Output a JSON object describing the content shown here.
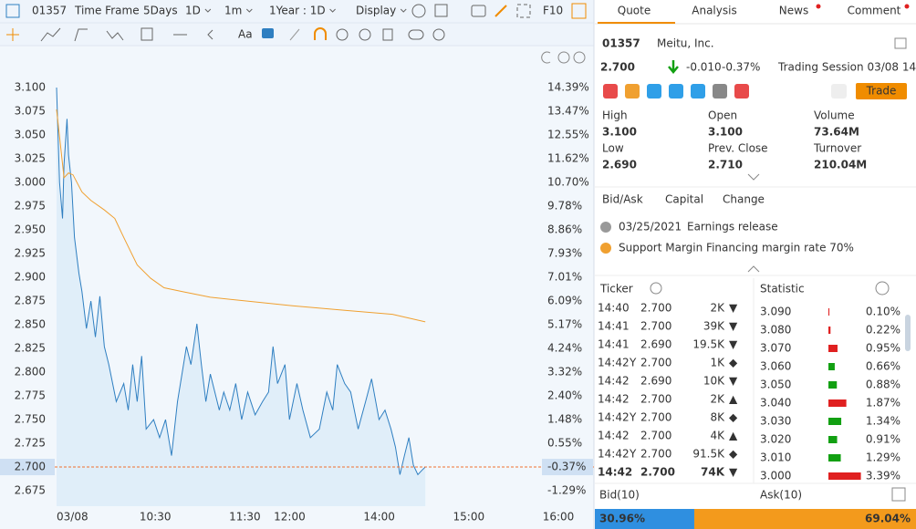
{
  "toolbar": {
    "code": "01357",
    "time_frame": "Time Frame",
    "options": [
      "5Days",
      "1D",
      "1m",
      "1Year : 1D",
      "Display"
    ],
    "f10": "F10",
    "font_tool": "Aa"
  },
  "chart": {
    "type": "line",
    "xlim": [
      0,
      330
    ],
    "xticks": [
      {
        "value": 0,
        "label": "03/08"
      },
      {
        "value": 60,
        "label": "10:30"
      },
      {
        "value": 120,
        "label": "11:30"
      },
      {
        "value": 150,
        "label": "12:00"
      },
      {
        "value": 210,
        "label": "14:00"
      },
      {
        "value": 270,
        "label": "15:00"
      },
      {
        "value": 330,
        "label": "16:00"
      }
    ],
    "ylim": [
      2.6587,
      3.1154
    ],
    "yticks": [
      {
        "value": 3.1,
        "label": "3.100"
      },
      {
        "value": 3.075,
        "label": "3.075"
      },
      {
        "value": 3.05,
        "label": "3.050"
      },
      {
        "value": 3.025,
        "label": "3.025"
      },
      {
        "value": 3.0,
        "label": "3.000"
      },
      {
        "value": 2.975,
        "label": "2.975"
      },
      {
        "value": 2.95,
        "label": "2.950"
      },
      {
        "value": 2.925,
        "label": "2.925"
      },
      {
        "value": 2.9,
        "label": "2.900"
      },
      {
        "value": 2.875,
        "label": "2.875"
      },
      {
        "value": 2.85,
        "label": "2.850"
      },
      {
        "value": 2.825,
        "label": "2.825"
      },
      {
        "value": 2.8,
        "label": "2.800"
      },
      {
        "value": 2.775,
        "label": "2.775"
      },
      {
        "value": 2.75,
        "label": "2.750"
      },
      {
        "value": 2.725,
        "label": "2.725"
      },
      {
        "value": 2.7,
        "label": "2.700"
      },
      {
        "value": 2.675,
        "label": "2.675"
      }
    ],
    "y2lim": [
      -1.893,
      14.959
    ],
    "y2ticks": [
      {
        "value": 14.39,
        "label": "14.39%"
      },
      {
        "value": 13.47,
        "label": "13.47%"
      },
      {
        "value": 12.55,
        "label": "12.55%"
      },
      {
        "value": 11.62,
        "label": "11.62%"
      },
      {
        "value": 10.7,
        "label": "10.70%"
      },
      {
        "value": 9.78,
        "label": "9.78%"
      },
      {
        "value": 8.86,
        "label": "8.86%"
      },
      {
        "value": 7.93,
        "label": "7.93%"
      },
      {
        "value": 7.01,
        "label": "7.01%"
      },
      {
        "value": 6.09,
        "label": "6.09%"
      },
      {
        "value": 5.17,
        "label": "5.17%"
      },
      {
        "value": 4.24,
        "label": "4.24%"
      },
      {
        "value": 3.32,
        "label": "3.32%"
      },
      {
        "value": 2.4,
        "label": "2.40%"
      },
      {
        "value": 1.48,
        "label": "1.48%"
      },
      {
        "value": 0.55,
        "label": "0.55%"
      },
      {
        "value": -0.37,
        "label": "-0.37%"
      },
      {
        "value": -1.29,
        "label": "-1.29%"
      }
    ],
    "up_color": "#e02020",
    "down_color": "#12a012",
    "series": [
      {
        "color": "#2f7fc1",
        "fill": "#d9e9f8",
        "x": [
          0,
          2,
          4,
          5,
          7,
          8,
          10,
          12,
          15,
          17,
          20,
          23,
          26,
          29,
          32,
          35,
          40,
          45,
          48,
          51,
          54,
          57,
          60,
          65,
          69,
          73,
          77,
          81,
          84,
          87,
          90,
          94,
          97,
          100,
          103,
          106,
          109,
          112,
          116,
          120,
          124,
          128,
          133,
          138,
          142,
          145,
          148,
          153,
          156,
          161,
          165,
          170,
          176,
          181,
          185,
          188,
          193,
          197,
          202,
          207,
          211,
          216,
          220,
          224,
          227,
          230,
          233,
          236,
          239,
          242,
          245,
          247
        ],
        "values": [
          3.1,
          3.0,
          2.962,
          3.019,
          3.067,
          3.029,
          3.0,
          2.942,
          2.904,
          2.885,
          2.846,
          2.875,
          2.837,
          2.88,
          2.827,
          2.808,
          2.769,
          2.788,
          2.76,
          2.808,
          2.769,
          2.817,
          2.74,
          2.75,
          2.731,
          2.75,
          2.712,
          2.769,
          2.798,
          2.827,
          2.808,
          2.851,
          2.808,
          2.769,
          2.798,
          2.779,
          2.76,
          2.779,
          2.76,
          2.788,
          2.75,
          2.779,
          2.755,
          2.769,
          2.779,
          2.827,
          2.788,
          2.808,
          2.75,
          2.788,
          2.76,
          2.731,
          2.74,
          2.779,
          2.76,
          2.808,
          2.788,
          2.779,
          2.74,
          2.769,
          2.793,
          2.75,
          2.76,
          2.74,
          2.721,
          2.692,
          2.712,
          2.731,
          2.702,
          2.692,
          2.697,
          2.7
        ]
      },
      {
        "color": "#f0a030",
        "x": [
          0,
          5,
          8,
          11,
          17,
          23,
          32,
          39,
          45,
          54,
          63,
          72,
          84,
          103,
          127,
          158,
          194,
          225,
          247
        ],
        "values": [
          3.077,
          3.005,
          3.01,
          3.008,
          2.99,
          2.981,
          2.971,
          2.962,
          2.942,
          2.913,
          2.899,
          2.889,
          2.885,
          2.879,
          2.875,
          2.87,
          2.865,
          2.861,
          2.853
        ]
      }
    ]
  },
  "quote": {
    "tabs": [
      "Quote",
      "Analysis",
      "News",
      "Comment"
    ],
    "code": "01357",
    "name": "Meitu, Inc.",
    "price": "2.700",
    "change": "-0.010",
    "change_pct": "-0.37%",
    "session": "Trading Session 03/08 14:42",
    "trade": "Trade",
    "stats": [
      {
        "label": "High",
        "value": "3.100",
        "color": "#e02020"
      },
      {
        "label": "Open",
        "value": "3.100",
        "color": "#e02020"
      },
      {
        "label": "Volume",
        "value": "73.64M",
        "color": "#333333"
      },
      {
        "label": "Low",
        "value": "2.690",
        "color": "#12a012"
      },
      {
        "label": "Prev. Close",
        "value": "2.710",
        "color": "#333333"
      },
      {
        "label": "Turnover",
        "value": "210.04M",
        "color": "#333333"
      }
    ],
    "sub_tabs": [
      "Bid/Ask",
      "Capital",
      "Change"
    ],
    "notices": [
      {
        "date": "03/25/2021",
        "text": "Earnings release"
      },
      {
        "text": "Support Margin Financing margin rate 70%"
      }
    ],
    "ticker_title": "Ticker",
    "statistic_title": "Statistic",
    "ticker": [
      {
        "time": "14:40",
        "price": "2.700",
        "volume": "2K",
        "mark": "▼",
        "color": "#12a012"
      },
      {
        "time": "14:41",
        "price": "2.700",
        "volume": "39K",
        "mark": "▼",
        "color": "#12a012"
      },
      {
        "time": "14:41",
        "price": "2.690",
        "volume": "19.5K",
        "mark": "▼",
        "color": "#12a012"
      },
      {
        "time": "14:42",
        "flag": "Y",
        "price": "2.700",
        "volume": "1K",
        "mark": "◆",
        "color": "#333333"
      },
      {
        "time": "14:42",
        "price": "2.690",
        "volume": "10K",
        "mark": "▼",
        "color": "#12a012"
      },
      {
        "time": "14:42",
        "price": "2.700",
        "volume": "2K",
        "mark": "▲",
        "color": "#e02020"
      },
      {
        "time": "14:42",
        "flag": "Y",
        "price": "2.700",
        "volume": "8K",
        "mark": "◆",
        "color": "#333333"
      },
      {
        "time": "14:42",
        "price": "2.700",
        "volume": "4K",
        "mark": "▲",
        "color": "#e02020"
      },
      {
        "time": "14:42",
        "flag": "Y",
        "price": "2.700",
        "volume": "91.5K",
        "mark": "◆",
        "color": "#333333"
      },
      {
        "time": "14:42",
        "price": "2.700",
        "volume": "74K",
        "mark": "▼",
        "color": "#12a012"
      }
    ],
    "statistic": [
      {
        "price": "3.090",
        "pct": {
          "value": 0.1,
          "label": "0.10%"
        },
        "color": "#e02020"
      },
      {
        "price": "3.080",
        "pct": {
          "value": 0.22,
          "label": "0.22%"
        },
        "color": "#e02020"
      },
      {
        "price": "3.070",
        "pct": {
          "value": 0.95,
          "label": "0.95%"
        },
        "color": "#e02020"
      },
      {
        "price": "3.060",
        "pct": {
          "value": 0.66,
          "label": "0.66%"
        },
        "color": "#12a012"
      },
      {
        "price": "3.050",
        "pct": {
          "value": 0.88,
          "label": "0.88%"
        },
        "color": "#12a012"
      },
      {
        "price": "3.040",
        "pct": {
          "value": 1.87,
          "label": "1.87%"
        },
        "color": "#e02020"
      },
      {
        "price": "3.030",
        "pct": {
          "value": 1.34,
          "label": "1.34%"
        },
        "color": "#12a012"
      },
      {
        "price": "3.020",
        "pct": {
          "value": 0.91,
          "label": "0.91%"
        },
        "color": "#12a012"
      },
      {
        "price": "3.010",
        "pct": {
          "value": 1.29,
          "label": "1.29%"
        },
        "color": "#12a012"
      },
      {
        "price": "3.000",
        "pct": {
          "value": 3.39,
          "label": "3.39%"
        },
        "color": "#e02020"
      }
    ],
    "bid": {
      "label": "Bid(10)",
      "share": {
        "value": 30.96,
        "label": "30.96%"
      }
    },
    "ask": {
      "label": "Ask(10)",
      "share": {
        "value": 69.04,
        "label": "69.04%"
      }
    }
  }
}
